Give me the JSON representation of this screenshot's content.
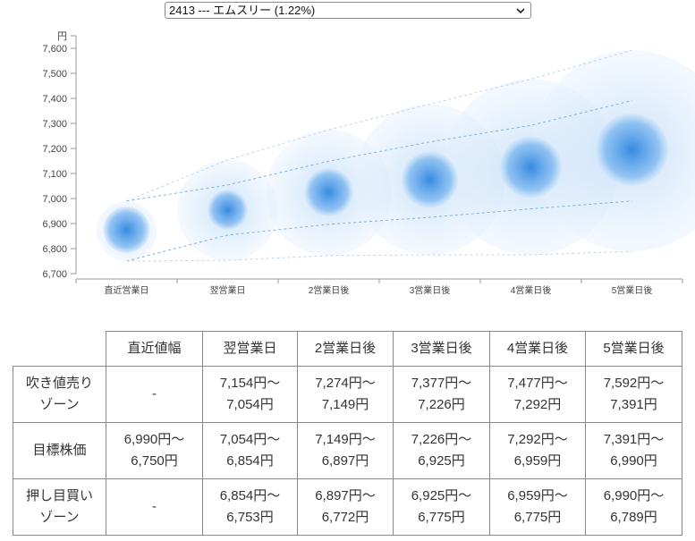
{
  "selector": {
    "value": "2413 --- エムスリー (1.22%)"
  },
  "chart_data": {
    "type": "bubble-range",
    "y_unit": "円",
    "ylim": [
      6700,
      7650
    ],
    "yticks": [
      6700,
      6800,
      6900,
      7000,
      7100,
      7200,
      7300,
      7400,
      7500,
      7600
    ],
    "ytick_labels": [
      "6,700",
      "6,800",
      "6,900",
      "7,000",
      "7,100",
      "7,200",
      "7,300",
      "7,400",
      "7,500",
      "7,600"
    ],
    "categories": [
      "直近営業日",
      "翌営業日",
      "2営業日後",
      "3営業日後",
      "4営業日後",
      "5営業日後"
    ],
    "center": [
      6875,
      6955,
      7025,
      7075,
      7125,
      7195
    ],
    "target_low": [
      6750,
      6854,
      6897,
      6925,
      6959,
      6990
    ],
    "target_high": [
      6990,
      7054,
      7149,
      7226,
      7292,
      7391
    ],
    "outer_low": [
      6750,
      6753,
      6772,
      6775,
      6775,
      6789
    ],
    "outer_high": [
      6990,
      7154,
      7274,
      7377,
      7477,
      7592
    ],
    "colors": {
      "core": "#4a9be6",
      "halo": "#d8eafc",
      "line": "#7fb3e0"
    }
  },
  "table": {
    "headers": [
      "",
      "直近値幅",
      "翌営業日",
      "2営業日後",
      "3営業日後",
      "4営業日後",
      "5営業日後"
    ],
    "rows": [
      {
        "label": [
          "吹き値売り",
          "ゾーン"
        ],
        "cells": [
          [
            "-"
          ],
          [
            "7,154円〜",
            "7,054円"
          ],
          [
            "7,274円〜",
            "7,149円"
          ],
          [
            "7,377円〜",
            "7,226円"
          ],
          [
            "7,477円〜",
            "7,292円"
          ],
          [
            "7,592円〜",
            "7,391円"
          ]
        ]
      },
      {
        "label": [
          "目標株価"
        ],
        "cells": [
          [
            "6,990円〜",
            "6,750円"
          ],
          [
            "7,054円〜",
            "6,854円"
          ],
          [
            "7,149円〜",
            "6,897円"
          ],
          [
            "7,226円〜",
            "6,925円"
          ],
          [
            "7,292円〜",
            "6,959円"
          ],
          [
            "7,391円〜",
            "6,990円"
          ]
        ]
      },
      {
        "label": [
          "押し目買い",
          "ゾーン"
        ],
        "cells": [
          [
            "-"
          ],
          [
            "6,854円〜",
            "6,753円"
          ],
          [
            "6,897円〜",
            "6,772円"
          ],
          [
            "6,925円〜",
            "6,775円"
          ],
          [
            "6,959円〜",
            "6,775円"
          ],
          [
            "6,990円〜",
            "6,789円"
          ]
        ]
      }
    ]
  }
}
